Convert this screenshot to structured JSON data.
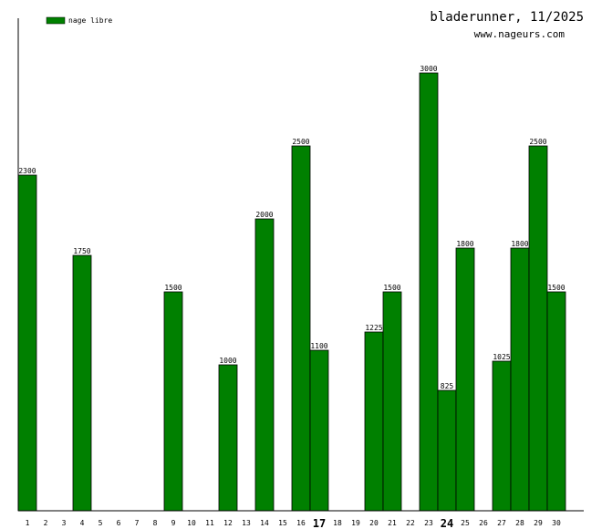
{
  "header": {
    "title": "bladerunner, 11/2025",
    "site": "www.nageurs.com"
  },
  "colors": {
    "bar": "#008000",
    "bar_stroke": "#000000",
    "axis": "#000000"
  },
  "chart_data": {
    "type": "bar",
    "categories": [
      "1",
      "2",
      "3",
      "4",
      "5",
      "6",
      "7",
      "8",
      "9",
      "10",
      "11",
      "12",
      "13",
      "14",
      "15",
      "16",
      "17",
      "18",
      "19",
      "20",
      "21",
      "22",
      "23",
      "24",
      "25",
      "26",
      "27",
      "28",
      "29",
      "30"
    ],
    "bold_categories": [
      "17",
      "24"
    ],
    "series": [
      {
        "name": "nage libre",
        "values": [
          2300,
          0,
          0,
          1750,
          0,
          0,
          0,
          0,
          1500,
          0,
          0,
          1000,
          0,
          2000,
          0,
          2500,
          1100,
          0,
          0,
          1225,
          1500,
          0,
          3000,
          825,
          1800,
          0,
          1025,
          1800,
          2500,
          1500
        ]
      }
    ],
    "ylim": [
      0,
      3375
    ],
    "grid": false,
    "legend_position": "top-left"
  }
}
